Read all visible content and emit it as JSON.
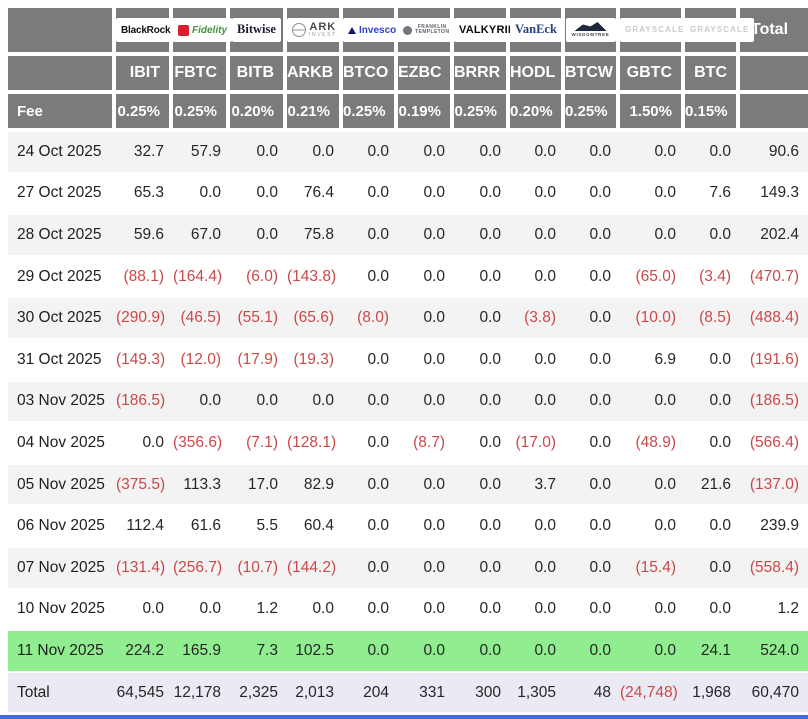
{
  "table": {
    "fee_label": "Fee",
    "total_label": "Total",
    "columns": [
      {
        "ticker": "IBIT",
        "fee": "0.25%",
        "provider": "BlackRock",
        "logo": "blackrock",
        "logo_lines": [
          "BlackRock"
        ]
      },
      {
        "ticker": "FBTC",
        "fee": "0.25%",
        "provider": "Fidelity",
        "logo": "fidelity",
        "logo_lines": [
          "Fidelity"
        ]
      },
      {
        "ticker": "BITB",
        "fee": "0.20%",
        "provider": "Bitwise",
        "logo": "bitwise",
        "logo_lines": [
          "Bitwise"
        ]
      },
      {
        "ticker": "ARKB",
        "fee": "0.21%",
        "provider": "ARK Invest",
        "logo": "ark",
        "logo_lines": [
          "ARK",
          "INVEST"
        ]
      },
      {
        "ticker": "BTCO",
        "fee": "0.25%",
        "provider": "Invesco",
        "logo": "invesco",
        "logo_lines": [
          "Invesco"
        ]
      },
      {
        "ticker": "EZBC",
        "fee": "0.19%",
        "provider": "Franklin Templeton",
        "logo": "franklin",
        "logo_lines": [
          "FRANKLIN",
          "TEMPLETON"
        ]
      },
      {
        "ticker": "BRRR",
        "fee": "0.25%",
        "provider": "Valkyrie",
        "logo": "valkyrie",
        "logo_lines": [
          "VALKYRIE"
        ]
      },
      {
        "ticker": "HODL",
        "fee": "0.20%",
        "provider": "VanEck",
        "logo": "vaneck",
        "logo_lines": [
          "VanEck"
        ]
      },
      {
        "ticker": "BTCW",
        "fee": "0.25%",
        "provider": "WisdomTree",
        "logo": "wisdomtree",
        "logo_lines": [
          "WISDOMTREE"
        ]
      },
      {
        "ticker": "GBTC",
        "fee": "1.50%",
        "provider": "Grayscale",
        "logo": "grayscale",
        "logo_lines": [
          "GRAYSCALE"
        ]
      },
      {
        "ticker": "BTC",
        "fee": "0.15%",
        "provider": "Grayscale",
        "logo": "grayscale",
        "logo_lines": [
          "GRAYSCALE"
        ]
      }
    ],
    "rows": [
      {
        "date": "24 Oct 2025",
        "highlight": false,
        "values": [
          "32.7",
          "57.9",
          "0.0",
          "0.0",
          "0.0",
          "0.0",
          "0.0",
          "0.0",
          "0.0",
          "0.0",
          "0.0",
          "90.6"
        ]
      },
      {
        "date": "27 Oct 2025",
        "highlight": false,
        "values": [
          "65.3",
          "0.0",
          "0.0",
          "76.4",
          "0.0",
          "0.0",
          "0.0",
          "0.0",
          "0.0",
          "0.0",
          "7.6",
          "149.3"
        ]
      },
      {
        "date": "28 Oct 2025",
        "highlight": false,
        "values": [
          "59.6",
          "67.0",
          "0.0",
          "75.8",
          "0.0",
          "0.0",
          "0.0",
          "0.0",
          "0.0",
          "0.0",
          "0.0",
          "202.4"
        ]
      },
      {
        "date": "29 Oct 2025",
        "highlight": false,
        "values": [
          "(88.1)",
          "(164.4)",
          "(6.0)",
          "(143.8)",
          "0.0",
          "0.0",
          "0.0",
          "0.0",
          "0.0",
          "(65.0)",
          "(3.4)",
          "(470.7)"
        ]
      },
      {
        "date": "30 Oct 2025",
        "highlight": false,
        "values": [
          "(290.9)",
          "(46.5)",
          "(55.1)",
          "(65.6)",
          "(8.0)",
          "0.0",
          "0.0",
          "(3.8)",
          "0.0",
          "(10.0)",
          "(8.5)",
          "(488.4)"
        ]
      },
      {
        "date": "31 Oct 2025",
        "highlight": false,
        "values": [
          "(149.3)",
          "(12.0)",
          "(17.9)",
          "(19.3)",
          "0.0",
          "0.0",
          "0.0",
          "0.0",
          "0.0",
          "6.9",
          "0.0",
          "(191.6)"
        ]
      },
      {
        "date": "03 Nov 2025",
        "highlight": false,
        "values": [
          "(186.5)",
          "0.0",
          "0.0",
          "0.0",
          "0.0",
          "0.0",
          "0.0",
          "0.0",
          "0.0",
          "0.0",
          "0.0",
          "(186.5)"
        ]
      },
      {
        "date": "04 Nov 2025",
        "highlight": false,
        "values": [
          "0.0",
          "(356.6)",
          "(7.1)",
          "(128.1)",
          "0.0",
          "(8.7)",
          "0.0",
          "(17.0)",
          "0.0",
          "(48.9)",
          "0.0",
          "(566.4)"
        ]
      },
      {
        "date": "05 Nov 2025",
        "highlight": false,
        "values": [
          "(375.5)",
          "113.3",
          "17.0",
          "82.9",
          "0.0",
          "0.0",
          "0.0",
          "3.7",
          "0.0",
          "0.0",
          "21.6",
          "(137.0)"
        ]
      },
      {
        "date": "06 Nov 2025",
        "highlight": false,
        "values": [
          "112.4",
          "61.6",
          "5.5",
          "60.4",
          "0.0",
          "0.0",
          "0.0",
          "0.0",
          "0.0",
          "0.0",
          "0.0",
          "239.9"
        ]
      },
      {
        "date": "07 Nov 2025",
        "highlight": false,
        "values": [
          "(131.4)",
          "(256.7)",
          "(10.7)",
          "(144.2)",
          "0.0",
          "0.0",
          "0.0",
          "0.0",
          "0.0",
          "(15.4)",
          "0.0",
          "(558.4)"
        ]
      },
      {
        "date": "10 Nov 2025",
        "highlight": false,
        "values": [
          "0.0",
          "0.0",
          "1.2",
          "0.0",
          "0.0",
          "0.0",
          "0.0",
          "0.0",
          "0.0",
          "0.0",
          "0.0",
          "1.2"
        ]
      },
      {
        "date": "11 Nov 2025",
        "highlight": true,
        "values": [
          "224.2",
          "165.9",
          "7.3",
          "102.5",
          "0.0",
          "0.0",
          "0.0",
          "0.0",
          "0.0",
          "0.0",
          "24.1",
          "524.0"
        ]
      }
    ],
    "total_row": {
      "label": "Total",
      "values": [
        "64,545",
        "12,178",
        "2,325",
        "2,013",
        "204",
        "331",
        "300",
        "1,305",
        "48",
        "(24,748)",
        "1,968",
        "60,470"
      ]
    }
  },
  "colors": {
    "header_gray": "#7b7b7b",
    "stripe_gray": "#f3f3f4",
    "negative_red": "#cb4848",
    "highlight_green": "#90ee90",
    "total_row_bg": "#e9eaf4",
    "bottom_bar_blue": "#3f6fd8"
  },
  "chart_data": {
    "type": "table",
    "columns": [
      "IBIT",
      "FBTC",
      "BITB",
      "ARKB",
      "BTCO",
      "EZBC",
      "BRRR",
      "HODL",
      "BTCW",
      "GBTC",
      "BTC",
      "Total"
    ],
    "providers": [
      "BlackRock",
      "Fidelity",
      "Bitwise",
      "ARK Invest",
      "Invesco",
      "Franklin Templeton",
      "Valkyrie",
      "VanEck",
      "WisdomTree",
      "Grayscale",
      "Grayscale"
    ],
    "fees_percent": [
      0.25,
      0.25,
      0.2,
      0.21,
      0.25,
      0.19,
      0.25,
      0.2,
      0.25,
      1.5,
      0.15
    ],
    "rows": [
      {
        "date": "24 Oct 2025",
        "values": [
          32.7,
          57.9,
          0,
          0,
          0,
          0,
          0,
          0,
          0,
          0,
          0,
          90.6
        ]
      },
      {
        "date": "27 Oct 2025",
        "values": [
          65.3,
          0,
          0,
          76.4,
          0,
          0,
          0,
          0,
          0,
          0,
          7.6,
          149.3
        ]
      },
      {
        "date": "28 Oct 2025",
        "values": [
          59.6,
          67.0,
          0,
          75.8,
          0,
          0,
          0,
          0,
          0,
          0,
          0,
          202.4
        ]
      },
      {
        "date": "29 Oct 2025",
        "values": [
          -88.1,
          -164.4,
          -6.0,
          -143.8,
          0,
          0,
          0,
          0,
          0,
          -65.0,
          -3.4,
          -470.7
        ]
      },
      {
        "date": "30 Oct 2025",
        "values": [
          -290.9,
          -46.5,
          -55.1,
          -65.6,
          -8.0,
          0,
          0,
          -3.8,
          0,
          -10.0,
          -8.5,
          -488.4
        ]
      },
      {
        "date": "31 Oct 2025",
        "values": [
          -149.3,
          -12.0,
          -17.9,
          -19.3,
          0,
          0,
          0,
          0,
          0,
          6.9,
          0,
          -191.6
        ]
      },
      {
        "date": "03 Nov 2025",
        "values": [
          -186.5,
          0,
          0,
          0,
          0,
          0,
          0,
          0,
          0,
          0,
          0,
          -186.5
        ]
      },
      {
        "date": "04 Nov 2025",
        "values": [
          0,
          -356.6,
          -7.1,
          -128.1,
          0,
          -8.7,
          0,
          -17.0,
          0,
          -48.9,
          0,
          -566.4
        ]
      },
      {
        "date": "05 Nov 2025",
        "values": [
          -375.5,
          113.3,
          17.0,
          82.9,
          0,
          0,
          0,
          3.7,
          0,
          0,
          21.6,
          -137.0
        ]
      },
      {
        "date": "06 Nov 2025",
        "values": [
          112.4,
          61.6,
          5.5,
          60.4,
          0,
          0,
          0,
          0,
          0,
          0,
          0,
          239.9
        ]
      },
      {
        "date": "07 Nov 2025",
        "values": [
          -131.4,
          -256.7,
          -10.7,
          -144.2,
          0,
          0,
          0,
          0,
          0,
          -15.4,
          0,
          -558.4
        ]
      },
      {
        "date": "10 Nov 2025",
        "values": [
          0,
          0,
          1.2,
          0,
          0,
          0,
          0,
          0,
          0,
          0,
          0,
          1.2
        ]
      },
      {
        "date": "11 Nov 2025",
        "values": [
          224.2,
          165.9,
          7.3,
          102.5,
          0,
          0,
          0,
          0,
          0,
          0,
          24.1,
          524.0
        ]
      }
    ],
    "total": [
      64545,
      12178,
      2325,
      2013,
      204,
      331,
      300,
      1305,
      48,
      -24748,
      1968,
      60470
    ],
    "highlighted_row": "11 Nov 2025",
    "negative_format": "parentheses-red"
  }
}
